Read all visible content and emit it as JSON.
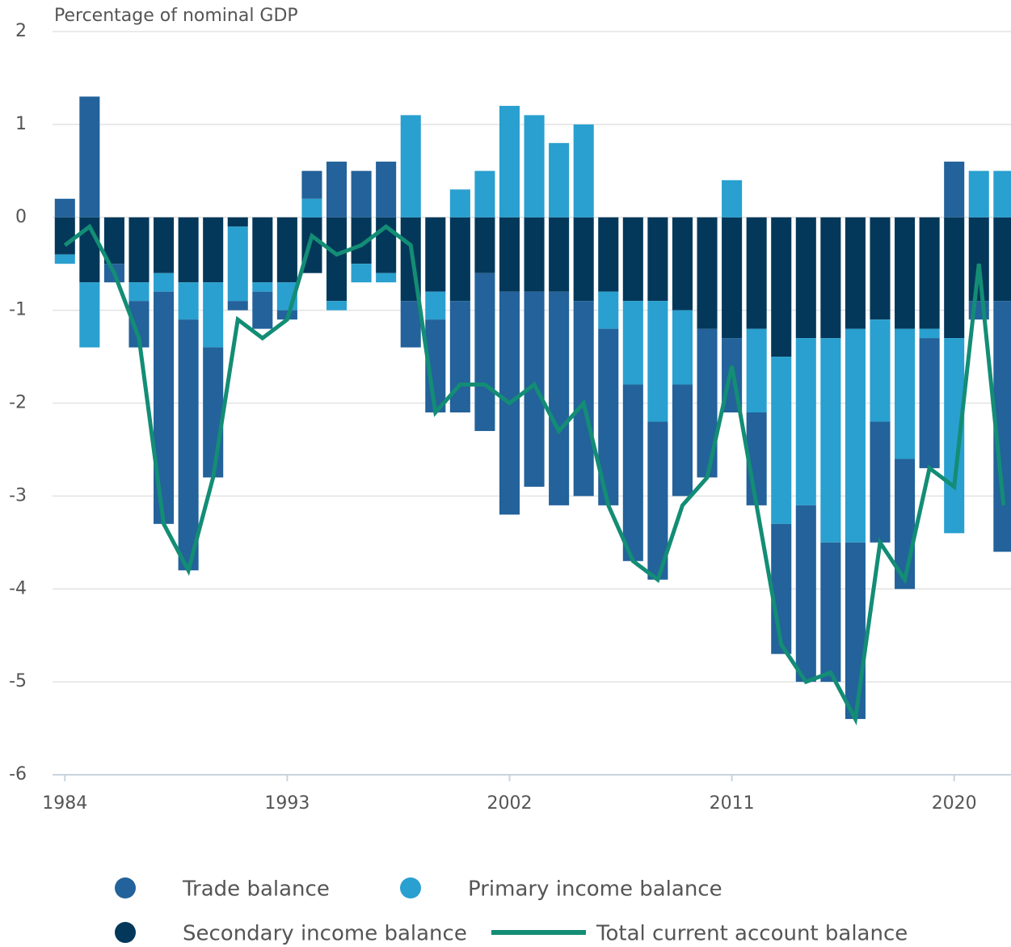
{
  "chart_data": {
    "type": "bar",
    "subtitle": "Percentage of nominal GDP",
    "x": [
      1984,
      1985,
      1986,
      1987,
      1988,
      1989,
      1990,
      1991,
      1992,
      1993,
      1994,
      1995,
      1996,
      1997,
      1998,
      1999,
      2000,
      2001,
      2002,
      2003,
      2004,
      2005,
      2006,
      2007,
      2008,
      2009,
      2010,
      2011,
      2012,
      2013,
      2014,
      2015,
      2016,
      2017,
      2018,
      2019,
      2020,
      2021,
      2022
    ],
    "xlim": [
      1983.5,
      2022.3
    ],
    "xticks": [
      1984,
      1993,
      2002,
      2011,
      2020
    ],
    "ylim": [
      -6,
      2
    ],
    "yticks": [
      -6,
      -5,
      -4,
      -3,
      -2,
      -1,
      0,
      1,
      2
    ],
    "grid": true,
    "series": [
      {
        "name": "Trade balance",
        "color": "#23629a",
        "values": [
          0.2,
          1.3,
          -0.2,
          -0.5,
          -2.5,
          -2.7,
          -1.4,
          -0.1,
          -0.4,
          -0.1,
          0.3,
          0.6,
          0.5,
          0.6,
          -0.5,
          -1.0,
          -1.2,
          -1.7,
          -2.4,
          -2.1,
          -2.3,
          -2.1,
          -1.9,
          -1.9,
          -1.7,
          -1.2,
          -1.6,
          -0.8,
          -1.0,
          -1.4,
          -1.9,
          -1.5,
          -1.9,
          -1.3,
          -1.4,
          -1.4,
          0.6,
          -0.2,
          -2.7
        ]
      },
      {
        "name": "Primary income balance",
        "color": "#29a0cf",
        "values": [
          -0.1,
          -0.7,
          0,
          -0.2,
          -0.2,
          -0.4,
          -0.7,
          -0.8,
          -0.1,
          -0.3,
          0.2,
          -0.1,
          -0.2,
          -0.1,
          1.1,
          -0.3,
          0.3,
          0.5,
          1.2,
          1.1,
          0.8,
          1.0,
          -0.4,
          -0.9,
          -1.3,
          -0.8,
          0,
          0.4,
          -0.9,
          -1.8,
          -1.8,
          -2.2,
          -2.3,
          -1.1,
          -1.4,
          -0.1,
          -2.1,
          0.5,
          0.5
        ]
      },
      {
        "name": "Secondary income balance",
        "color": "#04385a",
        "values": [
          -0.4,
          -0.7,
          -0.5,
          -0.7,
          -0.6,
          -0.7,
          -0.7,
          -0.1,
          -0.7,
          -0.7,
          -0.6,
          -0.9,
          -0.5,
          -0.6,
          -0.9,
          -0.8,
          -0.9,
          -0.6,
          -0.8,
          -0.8,
          -0.8,
          -0.9,
          -0.8,
          -0.9,
          -0.9,
          -1.0,
          -1.2,
          -1.3,
          -1.2,
          -1.5,
          -1.3,
          -1.3,
          -1.2,
          -1.1,
          -1.2,
          -1.2,
          -1.3,
          -0.9,
          -0.9
        ]
      },
      {
        "name": "Total current account balance",
        "color": "#138d75",
        "type": "line",
        "values": [
          -0.3,
          -0.1,
          -0.6,
          -1.3,
          -3.3,
          -3.8,
          -2.8,
          -1.1,
          -1.3,
          -1.1,
          -0.2,
          -0.4,
          -0.3,
          -0.1,
          -0.3,
          -2.1,
          -1.8,
          -1.8,
          -2.0,
          -1.8,
          -2.3,
          -2.0,
          -3.1,
          -3.7,
          -3.9,
          -3.1,
          -2.8,
          -1.6,
          -3.1,
          -4.6,
          -5.0,
          -4.9,
          -5.4,
          -3.5,
          -3.9,
          -2.7,
          -2.9,
          -0.5,
          -3.1
        ]
      }
    ]
  }
}
